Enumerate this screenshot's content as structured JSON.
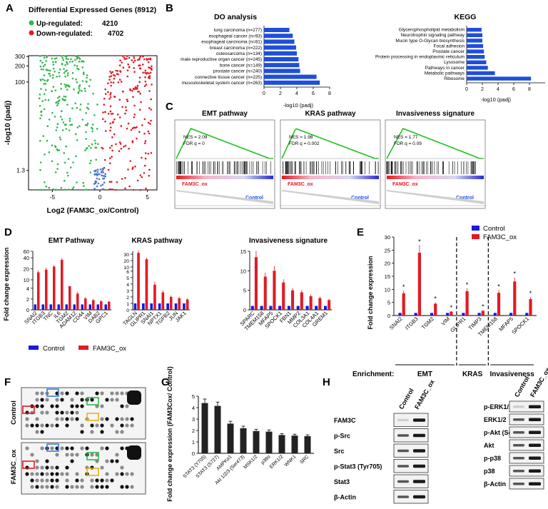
{
  "panel_letters": [
    "A",
    "B",
    "C",
    "D",
    "E",
    "F",
    "G",
    "H"
  ],
  "colors": {
    "up": "#2db84d",
    "down": "#e01b24",
    "ns": "#4a78c8",
    "control": "#1a1ad9",
    "ox": "#e01b24",
    "bar": "#222222",
    "do_bar": "#1f4fd9",
    "kegg_bar": "#1f4fd9"
  },
  "chart_data": [
    {
      "panel": "A",
      "type": "scatter",
      "title": "Differential Expressed Genes (8912)",
      "legend": [
        {
          "name": "Up-regulated:",
          "count": "4210"
        },
        {
          "name": "Down-regulated:",
          "count": "4702"
        }
      ],
      "xlabel": "Log2 (FAM3C_ox/Control)",
      "ylabel": "-log10 (padj)",
      "xticks": [
        "-5",
        "0",
        "5"
      ],
      "yticks": [
        "1.3",
        "100",
        "200",
        "300"
      ],
      "xlim": [
        -7.5,
        6
      ],
      "ylim": [
        0,
        310
      ],
      "points_note": ""
    },
    {
      "panel": "B-DO",
      "type": "bar",
      "orientation": "horizontal",
      "title": "DO analysis",
      "xlabel": "-log10 (padj)",
      "xlim": [
        0,
        8
      ],
      "xticks": [
        "0",
        "2",
        "4",
        "6",
        "8"
      ],
      "categories": [
        "lung carcinoma (n=277)",
        "esophageal cancer (n=93)",
        "esophageal carcinoma (n=81)",
        "breast carcinoma (n=222)",
        "osteosarcoma (n=134)",
        "male reproductive organ cancer (n=245)",
        "bone cancer (n=149)",
        "prostate cancer (n=240)",
        "connective tissue cancer (n=225)",
        "musculoskeletal system cancer (n=263)"
      ],
      "values": [
        3.1,
        3.5,
        3.7,
        3.9,
        4.0,
        4.2,
        4.3,
        4.4,
        6.4,
        6.8
      ]
    },
    {
      "panel": "B-KEGG",
      "type": "bar",
      "orientation": "horizontal",
      "title": "KEGG",
      "xlabel": "-log10 (padj)",
      "xlim": [
        0,
        10
      ],
      "xticks": [
        "0",
        "2",
        "4",
        "6",
        "8"
      ],
      "categories": [
        "Glycerophospholipid metabolism",
        "Neurotrophin signaling pathway",
        "Mucin type O-Glycan biosynthesis",
        "Focal adhesion",
        "Prostate cancer",
        "Protein processing in endoplasmic reticulum",
        "Lysosome",
        "Pathways in cancer",
        "Metabolic pathways",
        "Ribosome"
      ],
      "values": [
        1.9,
        2.0,
        2.0,
        2.1,
        2.2,
        2.3,
        2.5,
        2.7,
        3.6,
        8.2
      ]
    },
    {
      "panel": "C",
      "type": "line",
      "plots": [
        {
          "title": "EMT pathway",
          "nes": "NES = 2.09",
          "fdr": "FDR q = 0",
          "peak": 0.6
        },
        {
          "title": "KRAS pathway",
          "nes": "NES = 1.98",
          "fdr": "FDR q = 0.002",
          "peak": 0.45
        },
        {
          "title": "Invasiveness signature",
          "nes": "NES = 1.77",
          "fdr": "FDR q = 0.09",
          "peak": 0.95
        }
      ],
      "group_labels": {
        "ox": "FAM3C_ox",
        "control": "Control"
      }
    },
    {
      "panel": "D-EMT",
      "type": "bar",
      "title": "EMT Pathway",
      "ylabel": "Fold change expression",
      "broken_axis": true,
      "yticks_low": [
        "0",
        "2",
        "4"
      ],
      "yticks_high": [
        "10",
        "20",
        "40",
        "60"
      ],
      "categories": [
        "SNAI2",
        "ITGB3",
        "TNC",
        "IL6",
        "TGM2",
        "ADAM12",
        "CD44",
        "VIM",
        "DAB2",
        "GPC1"
      ],
      "series": [
        {
          "name": "Control",
          "values": [
            1,
            1,
            1,
            1,
            1,
            1,
            1,
            1,
            1,
            1
          ]
        },
        {
          "name": "FAM3C_ox",
          "values": [
            16,
            19,
            23,
            35,
            4.4,
            3.0,
            2.1,
            1.8,
            1.6,
            1.5
          ]
        }
      ]
    },
    {
      "panel": "D-KRAS",
      "type": "bar",
      "title": "KRAS pathway",
      "broken_axis": true,
      "yticks_low": [
        "0",
        "1",
        "2",
        "3",
        "4",
        "5",
        "6"
      ],
      "yticks_high": [
        "10",
        "20",
        "30"
      ],
      "categories": [
        "TAGLN",
        "GLIPR1",
        "SNAI1",
        "NPTX1",
        "TGFB2",
        "JUN",
        "JAK1"
      ],
      "series": [
        {
          "name": "Control",
          "values": [
            1,
            1,
            1,
            1,
            1,
            1,
            1
          ]
        },
        {
          "name": "FAM3C_ox",
          "values": [
            32,
            22,
            3.9,
            2.7,
            2.0,
            1.8,
            1.6
          ]
        }
      ]
    },
    {
      "panel": "D-INV",
      "type": "bar",
      "title": "Invasiveness signature",
      "ylim": [
        0,
        15
      ],
      "yticks": [
        "0",
        "5",
        "10",
        "15"
      ],
      "categories": [
        "SPARC",
        "TMEM158",
        "MFAP5",
        "SPOCK1",
        "FBN1",
        "MMP2",
        "COL3A1",
        "COL4A1",
        "GREM1"
      ],
      "series": [
        {
          "name": "Control",
          "values": [
            1,
            1,
            1,
            1,
            1,
            1,
            1,
            1,
            1
          ]
        },
        {
          "name": "FAM3C_ox",
          "values": [
            13.5,
            8.5,
            10,
            7,
            5,
            4.5,
            3.5,
            3,
            2.5
          ]
        }
      ]
    },
    {
      "panel": "D-legend",
      "type": "bar",
      "legend": [
        "Control",
        "FAM3C_ox"
      ]
    },
    {
      "panel": "E",
      "type": "bar",
      "ylabel": "Fold change expression",
      "ylim": [
        0,
        30
      ],
      "yticks": [
        "0",
        "5",
        "10",
        "15",
        "20",
        "25",
        "30"
      ],
      "categories": [
        "SNAI2",
        "ITGB3",
        "TGM2",
        "VIM",
        "GLIPR1",
        "TIMP3",
        "TMEM158",
        "MFAP5",
        "SPOCK1"
      ],
      "series": [
        {
          "name": "Control",
          "values": [
            1,
            1,
            1,
            1,
            1,
            1,
            1,
            1,
            1
          ]
        },
        {
          "name": "FAM3C_ox",
          "values": [
            8.5,
            24,
            4.5,
            1.5,
            9.3,
            1.8,
            8.7,
            13,
            6.3
          ]
        }
      ],
      "star": "*",
      "enrichment_label": "Enrichment:",
      "groups": [
        {
          "name": "EMT",
          "span": [
            0,
            3
          ]
        },
        {
          "name": "KRAS",
          "span": [
            4,
            5
          ]
        },
        {
          "name": "Invasiveness",
          "span": [
            6,
            8
          ]
        }
      ]
    },
    {
      "panel": "G",
      "type": "bar",
      "ylabel": "Fold change expression (FAM3Cox/ Control)",
      "ylim": [
        0,
        5
      ],
      "yticks": [
        "0",
        "1",
        "2",
        "3",
        "4",
        "5"
      ],
      "categories": [
        "STAT3 (Y705)",
        "STAT3 (S727)",
        "AMPKα1",
        "Akt 1/2/3 (Ser473)",
        "MSK1/2",
        "p38α",
        "ERK1/2",
        "WNK1",
        "SRC"
      ],
      "values": [
        4.4,
        4.15,
        2.6,
        2.2,
        1.95,
        1.9,
        1.6,
        1.55,
        1.5
      ]
    }
  ],
  "blots": {
    "F": {
      "rows": [
        "Control",
        "FAM3C_ox"
      ]
    },
    "H": {
      "left_lanes": [
        "Control",
        "FAM3C_ox"
      ],
      "left_labels": [
        "FAM3C",
        "p-Src",
        "Src",
        "p-Stat3 (Tyr705)",
        "Stat3",
        "β-Actin"
      ],
      "right_lanes": [
        "Control",
        "FAM3C_ox"
      ],
      "right_labels": [
        "p-ERK1/2",
        "ERK1/2",
        "p-Akt (Ser)",
        "Akt",
        "p-p38",
        "p38",
        "β-Actin"
      ]
    }
  }
}
